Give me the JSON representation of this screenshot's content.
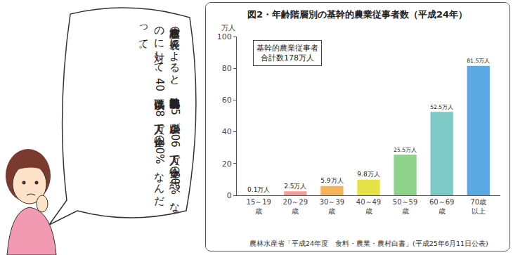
{
  "chart_data": {
    "type": "bar",
    "title": "図2・年齢階層別の基幹的農業従事者数（平成24年）",
    "y_label": "万人",
    "categories": [
      "15～19\n歳",
      "20～29\n歳",
      "30～39\n歳",
      "40～49\n歳",
      "50～59\n歳",
      "60～69\n歳",
      "70歳\n以上"
    ],
    "values": [
      0.1,
      2.5,
      5.9,
      9.8,
      25.5,
      52.5,
      81.5
    ],
    "value_labels": [
      "0.1万人",
      "2.5万人",
      "5.9万人",
      "9.8万人",
      "25.5万人",
      "52.5万人",
      "81.5万人"
    ],
    "colors": [
      "#f4b3c2",
      "#f5a096",
      "#f5b45a",
      "#e4e244",
      "#8fd28b",
      "#7dc9c6",
      "#5aa8e4"
    ],
    "ylim": [
      0,
      100
    ],
    "yticks": [
      0,
      20,
      40,
      60,
      80,
      100
    ],
    "grid": false,
    "data_labels": true,
    "annotations": [
      "基幹的農業従事者\n合計数178万人"
    ],
    "source": "農林水産省「平成24年度　食料・農業・農村白書」(平成25年6月11日公表)"
  },
  "speech_bubble": {
    "text": "農林水産省の発表によると、基幹的農業従事者数は65歳以上が106万人で全体の約60%なのに対して、40歳代以下は18万人で全体の10%なんだって。"
  }
}
